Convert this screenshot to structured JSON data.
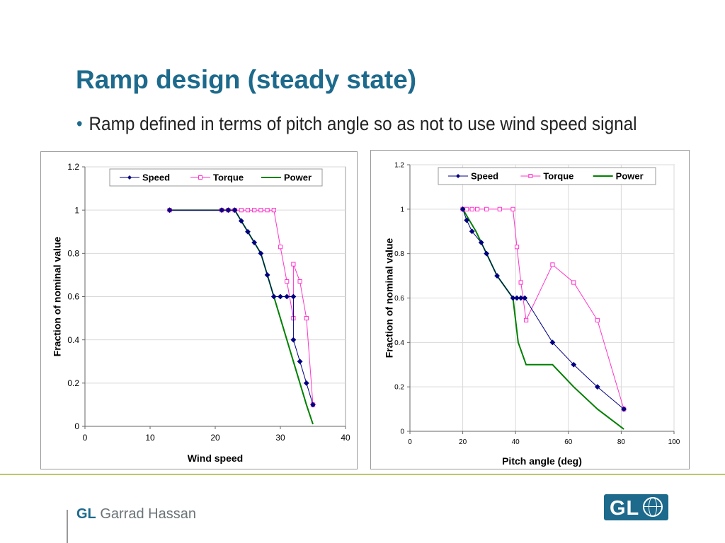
{
  "slide": {
    "title": "Ramp design (steady state)",
    "bullet": "Ramp defined in terms of pitch angle so as not to use wind speed signal",
    "footer": {
      "brand_short": "GL",
      "brand_name": "Garrad Hassan"
    },
    "logo_text": "GL"
  },
  "colors": {
    "title": "#1d6a8c",
    "speed": "#000080",
    "torque": "#ff33cc",
    "power": "#008000",
    "rule": "#bcc76b"
  },
  "chart_data": [
    {
      "type": "line",
      "xlabel": "Wind speed",
      "ylabel": "Fraction of nominal value",
      "xlim": [
        0,
        40
      ],
      "ylim": [
        0,
        1.2
      ],
      "xticks": [
        0,
        10,
        20,
        30,
        40
      ],
      "yticks": [
        0,
        0.2,
        0.4,
        0.6,
        0.8,
        1,
        1.2
      ],
      "grid": "horizontal",
      "legend": "top",
      "series": [
        {
          "name": "Speed",
          "marker": "diamond",
          "color": "#000080",
          "x": [
            13,
            21,
            22,
            23,
            24,
            25,
            26,
            27,
            28,
            29,
            30,
            31,
            32,
            32,
            33,
            34,
            35
          ],
          "y": [
            1.0,
            1.0,
            1.0,
            1.0,
            0.95,
            0.9,
            0.85,
            0.8,
            0.7,
            0.6,
            0.6,
            0.6,
            0.6,
            0.4,
            0.3,
            0.2,
            0.1
          ]
        },
        {
          "name": "Torque",
          "marker": "square",
          "color": "#ff33cc",
          "x": [
            13,
            21,
            22,
            23,
            24,
            25,
            26,
            27,
            28,
            29,
            30,
            31,
            32,
            32,
            33,
            34,
            35
          ],
          "y": [
            1.0,
            1.0,
            1.0,
            1.0,
            1.0,
            1.0,
            1.0,
            1.0,
            1.0,
            1.0,
            0.83,
            0.67,
            0.5,
            0.75,
            0.67,
            0.5,
            0.1
          ]
        },
        {
          "name": "Power",
          "marker": "none",
          "color": "#008000",
          "x": [
            13,
            23,
            24,
            25,
            26,
            27,
            28,
            29,
            30,
            31,
            32,
            33,
            34,
            35
          ],
          "y": [
            1.0,
            1.0,
            0.95,
            0.9,
            0.85,
            0.8,
            0.7,
            0.6,
            0.5,
            0.4,
            0.3,
            0.2,
            0.1,
            0.01
          ]
        }
      ]
    },
    {
      "type": "line",
      "xlabel": "Pitch angle (deg)",
      "ylabel": "Fraction of nominal value",
      "xlim": [
        0,
        100
      ],
      "ylim": [
        0,
        1.2
      ],
      "xticks": [
        0,
        20,
        40,
        60,
        80,
        100
      ],
      "yticks": [
        0,
        0.2,
        0.4,
        0.6,
        0.8,
        1,
        1.2
      ],
      "grid": "both",
      "legend": "top",
      "series": [
        {
          "name": "Speed",
          "marker": "diamond",
          "color": "#000080",
          "x": [
            20,
            21.5,
            23.5,
            27,
            29,
            33,
            39,
            40.5,
            42,
            43.5,
            54,
            62,
            71,
            81
          ],
          "y": [
            1.0,
            0.95,
            0.9,
            0.85,
            0.8,
            0.7,
            0.6,
            0.6,
            0.6,
            0.6,
            0.4,
            0.3,
            0.2,
            0.1
          ]
        },
        {
          "name": "Torque",
          "marker": "square",
          "color": "#ff33cc",
          "x": [
            20,
            21.5,
            23.5,
            25.5,
            29,
            34,
            39,
            40.5,
            42,
            44,
            54,
            62,
            71,
            81
          ],
          "y": [
            1.0,
            1.0,
            1.0,
            1.0,
            1.0,
            1.0,
            1.0,
            0.83,
            0.67,
            0.5,
            0.75,
            0.67,
            0.5,
            0.1
          ]
        },
        {
          "name": "Power",
          "marker": "none",
          "color": "#008000",
          "x": [
            20,
            25,
            29,
            33,
            39,
            41,
            44,
            54,
            62,
            71,
            81
          ],
          "y": [
            1.0,
            0.9,
            0.8,
            0.7,
            0.6,
            0.4,
            0.3,
            0.3,
            0.2,
            0.1,
            0.01
          ]
        }
      ]
    }
  ]
}
